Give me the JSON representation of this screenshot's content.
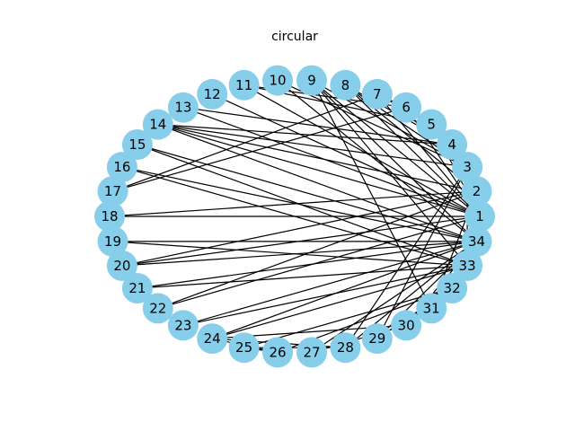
{
  "title": "circular",
  "colors": {
    "node_fill": "#87ceeb",
    "edge_stroke": "#000000",
    "background": "#ffffff"
  },
  "graph": {
    "layout": "circular",
    "nodes": [
      "1",
      "2",
      "3",
      "4",
      "5",
      "6",
      "7",
      "8",
      "9",
      "10",
      "11",
      "12",
      "13",
      "14",
      "15",
      "16",
      "17",
      "18",
      "19",
      "20",
      "21",
      "22",
      "23",
      "24",
      "25",
      "26",
      "27",
      "28",
      "29",
      "30",
      "31",
      "32",
      "33",
      "34"
    ],
    "edges": [
      [
        "1",
        "2"
      ],
      [
        "1",
        "3"
      ],
      [
        "1",
        "4"
      ],
      [
        "1",
        "5"
      ],
      [
        "1",
        "6"
      ],
      [
        "1",
        "7"
      ],
      [
        "1",
        "8"
      ],
      [
        "1",
        "9"
      ],
      [
        "1",
        "11"
      ],
      [
        "1",
        "12"
      ],
      [
        "1",
        "13"
      ],
      [
        "1",
        "14"
      ],
      [
        "1",
        "18"
      ],
      [
        "1",
        "20"
      ],
      [
        "1",
        "22"
      ],
      [
        "1",
        "32"
      ],
      [
        "2",
        "3"
      ],
      [
        "2",
        "4"
      ],
      [
        "2",
        "8"
      ],
      [
        "2",
        "14"
      ],
      [
        "2",
        "18"
      ],
      [
        "2",
        "20"
      ],
      [
        "2",
        "22"
      ],
      [
        "2",
        "31"
      ],
      [
        "3",
        "4"
      ],
      [
        "3",
        "8"
      ],
      [
        "3",
        "9"
      ],
      [
        "3",
        "10"
      ],
      [
        "3",
        "14"
      ],
      [
        "3",
        "28"
      ],
      [
        "3",
        "29"
      ],
      [
        "3",
        "33"
      ],
      [
        "4",
        "8"
      ],
      [
        "4",
        "13"
      ],
      [
        "4",
        "14"
      ],
      [
        "5",
        "7"
      ],
      [
        "5",
        "11"
      ],
      [
        "6",
        "7"
      ],
      [
        "6",
        "11"
      ],
      [
        "6",
        "17"
      ],
      [
        "7",
        "17"
      ],
      [
        "9",
        "31"
      ],
      [
        "9",
        "33"
      ],
      [
        "9",
        "34"
      ],
      [
        "10",
        "34"
      ],
      [
        "14",
        "34"
      ],
      [
        "15",
        "33"
      ],
      [
        "15",
        "34"
      ],
      [
        "16",
        "33"
      ],
      [
        "16",
        "34"
      ],
      [
        "19",
        "33"
      ],
      [
        "19",
        "34"
      ],
      [
        "20",
        "34"
      ],
      [
        "21",
        "33"
      ],
      [
        "21",
        "34"
      ],
      [
        "23",
        "33"
      ],
      [
        "23",
        "34"
      ],
      [
        "24",
        "26"
      ],
      [
        "24",
        "28"
      ],
      [
        "24",
        "30"
      ],
      [
        "24",
        "33"
      ],
      [
        "24",
        "34"
      ],
      [
        "25",
        "26"
      ],
      [
        "25",
        "28"
      ],
      [
        "25",
        "32"
      ],
      [
        "26",
        "32"
      ],
      [
        "27",
        "30"
      ],
      [
        "27",
        "34"
      ],
      [
        "28",
        "34"
      ],
      [
        "29",
        "32"
      ],
      [
        "29",
        "34"
      ],
      [
        "30",
        "33"
      ],
      [
        "30",
        "34"
      ],
      [
        "31",
        "33"
      ],
      [
        "31",
        "34"
      ],
      [
        "32",
        "33"
      ],
      [
        "32",
        "34"
      ],
      [
        "33",
        "34"
      ]
    ]
  }
}
